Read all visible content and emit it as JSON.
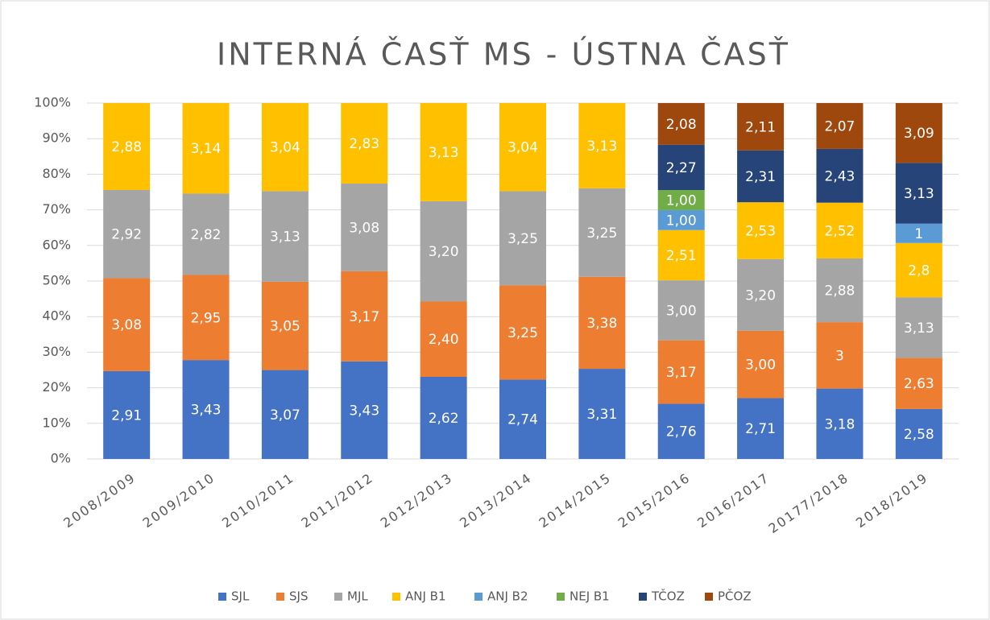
{
  "chart_data": {
    "type": "bar",
    "stacking": "percent",
    "title": "INTERNÁ ČASŤ MS - ÚSTNA ČASŤ",
    "categories": [
      "2008/2009",
      "2009/2010",
      "2010/2011",
      "2011/2012",
      "2012/2013",
      "2013/2014",
      "2014/2015",
      "2015/2016",
      "2016/2017",
      "20177/2018",
      "2018/2019"
    ],
    "ylim": [
      0,
      100
    ],
    "yticks": [
      {
        "value": 0,
        "label": "0%"
      },
      {
        "value": 10,
        "label": "10%"
      },
      {
        "value": 20,
        "label": "20%"
      },
      {
        "value": 30,
        "label": "30%"
      },
      {
        "value": 40,
        "label": "40%"
      },
      {
        "value": 50,
        "label": "50%"
      },
      {
        "value": 60,
        "label": "60%"
      },
      {
        "value": 70,
        "label": "70%"
      },
      {
        "value": 80,
        "label": "80%"
      },
      {
        "value": 90,
        "label": "90%"
      },
      {
        "value": 100,
        "label": "100%"
      }
    ],
    "grid": true,
    "legend": "bottom",
    "series": [
      {
        "name": "SJL",
        "color": "#4472c4",
        "values": [
          2.91,
          3.43,
          3.07,
          3.43,
          2.62,
          2.74,
          3.31,
          2.76,
          2.71,
          3.18,
          2.58
        ],
        "value_labels": [
          "2,91",
          "3,43",
          "3,07",
          "3,43",
          "2,62",
          "2,74",
          "3,31",
          "2,76",
          "2,71",
          "3,18",
          "2,58"
        ]
      },
      {
        "name": "SJS",
        "color": "#ed7d31",
        "values": [
          3.08,
          2.95,
          3.05,
          3.17,
          2.4,
          3.25,
          3.38,
          3.17,
          3.0,
          3,
          2.63
        ],
        "value_labels": [
          "3,08",
          "2,95",
          "3,05",
          "3,17",
          "2,40",
          "3,25",
          "3,38",
          "3,17",
          "3,00",
          "3",
          "2,63"
        ]
      },
      {
        "name": "MJL",
        "color": "#a5a5a5",
        "values": [
          2.92,
          2.82,
          3.13,
          3.08,
          3.2,
          3.25,
          3.25,
          3.0,
          3.2,
          2.88,
          3.13
        ],
        "value_labels": [
          "2,92",
          "2,82",
          "3,13",
          "3,08",
          "3,20",
          "3,25",
          "3,25",
          "3,00",
          "3,20",
          "2,88",
          "3,13"
        ]
      },
      {
        "name": "ANJ B1",
        "color": "#ffc000",
        "values": [
          2.88,
          3.14,
          3.04,
          2.83,
          3.13,
          3.04,
          3.13,
          2.51,
          2.53,
          2.52,
          2.8
        ],
        "value_labels": [
          "2,88",
          "3,14",
          "3,04",
          "2,83",
          "3,13",
          "3,04",
          "3,13",
          "2,51",
          "2,53",
          "2,52",
          "2,8"
        ]
      },
      {
        "name": "ANJ B2",
        "color": "#5b9bd5",
        "values": [
          null,
          null,
          null,
          null,
          null,
          null,
          null,
          1.0,
          null,
          null,
          1
        ],
        "value_labels": [
          null,
          null,
          null,
          null,
          null,
          null,
          null,
          "1,00",
          null,
          null,
          "1"
        ]
      },
      {
        "name": "NEJ B1",
        "color": "#70ad47",
        "values": [
          null,
          null,
          null,
          null,
          null,
          null,
          null,
          1.0,
          null,
          null,
          null
        ],
        "value_labels": [
          null,
          null,
          null,
          null,
          null,
          null,
          null,
          "1,00",
          null,
          null,
          null
        ]
      },
      {
        "name": "TČOZ",
        "color": "#264478",
        "values": [
          null,
          null,
          null,
          null,
          null,
          null,
          null,
          2.27,
          2.31,
          2.43,
          3.13
        ],
        "value_labels": [
          null,
          null,
          null,
          null,
          null,
          null,
          null,
          "2,27",
          "2,31",
          "2,43",
          "3,13"
        ]
      },
      {
        "name": "PČOZ",
        "color": "#9e480e",
        "values": [
          null,
          null,
          null,
          null,
          null,
          null,
          null,
          2.08,
          2.11,
          2.07,
          3.09
        ],
        "value_labels": [
          null,
          null,
          null,
          null,
          null,
          null,
          null,
          "2,08",
          "2,11",
          "2,07",
          "3,09"
        ]
      }
    ]
  }
}
